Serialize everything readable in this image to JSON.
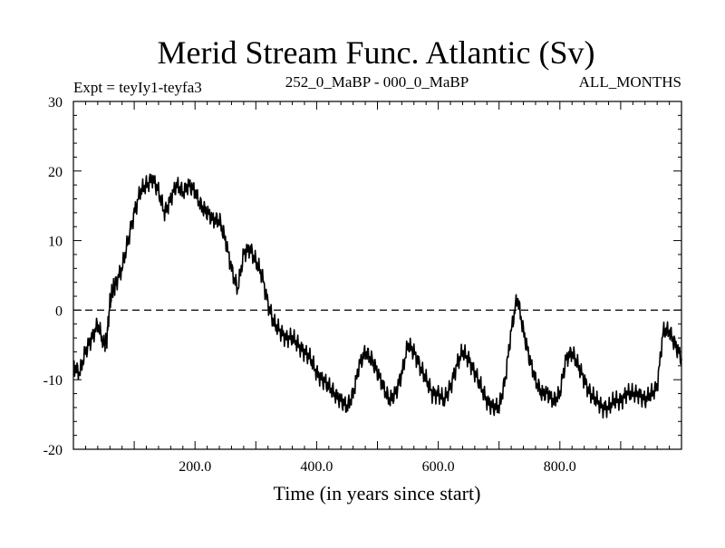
{
  "chart_data": {
    "type": "line",
    "title": "Merid Stream Func. Atlantic (Sv)",
    "subtitle_left": "Expt = teyIy1-teyfa3",
    "subtitle_center": "252_0_MaBP - 000_0_MaBP",
    "subtitle_right": "ALL_MONTHS",
    "xlabel": "Time (in years since start)",
    "ylabel": "",
    "xlim": [
      0,
      1000
    ],
    "ylim": [
      -20,
      30
    ],
    "x_ticks": [
      200,
      400,
      600,
      800
    ],
    "x_tick_labels": [
      "200.0",
      "400.0",
      "600.0",
      "800.0"
    ],
    "y_ticks": [
      -20,
      -10,
      0,
      10,
      20,
      30
    ],
    "y_tick_labels": [
      "-20",
      "-10",
      "0",
      "10",
      "20",
      "30"
    ],
    "reference_line": {
      "y": 0,
      "style": "dashed"
    },
    "series": [
      {
        "name": "Merid Stream Func. Atlantic",
        "x": [
          0,
          10,
          20,
          30,
          40,
          50,
          55,
          60,
          65,
          70,
          80,
          90,
          100,
          110,
          120,
          130,
          140,
          150,
          160,
          170,
          180,
          190,
          200,
          210,
          220,
          230,
          240,
          250,
          260,
          270,
          280,
          290,
          300,
          310,
          320,
          330,
          340,
          350,
          360,
          370,
          380,
          390,
          400,
          410,
          420,
          430,
          440,
          450,
          460,
          470,
          480,
          490,
          500,
          510,
          520,
          530,
          540,
          550,
          560,
          570,
          580,
          590,
          600,
          610,
          620,
          630,
          640,
          650,
          660,
          670,
          680,
          690,
          700,
          710,
          720,
          730,
          740,
          750,
          760,
          770,
          780,
          790,
          800,
          810,
          820,
          830,
          840,
          850,
          860,
          870,
          880,
          890,
          900,
          910,
          920,
          930,
          940,
          950,
          960,
          970,
          980,
          990,
          1000
        ],
        "y": [
          -8,
          -9,
          -6,
          -4,
          -2,
          -5,
          -4,
          1,
          3,
          4,
          6,
          10,
          14,
          17,
          18,
          19,
          17,
          14,
          16,
          18,
          17,
          18,
          17,
          15,
          14,
          13,
          13,
          10,
          6,
          3,
          8,
          9,
          7,
          5,
          1,
          -2,
          -3,
          -4,
          -4,
          -5,
          -6,
          -7,
          -9,
          -10,
          -11,
          -12,
          -13,
          -14,
          -12,
          -8,
          -6,
          -7,
          -9,
          -11,
          -13,
          -12,
          -9,
          -5,
          -6,
          -8,
          -10,
          -12,
          -12,
          -13,
          -11,
          -8,
          -6,
          -7,
          -9,
          -11,
          -13,
          -14,
          -14,
          -10,
          -3,
          2,
          -3,
          -7,
          -10,
          -12,
          -12,
          -13,
          -12,
          -7,
          -6,
          -8,
          -10,
          -12,
          -13,
          -14,
          -14,
          -13,
          -13,
          -12,
          -12,
          -12,
          -13,
          -12,
          -11,
          -3,
          -3,
          -5,
          -7
        ]
      }
    ]
  }
}
